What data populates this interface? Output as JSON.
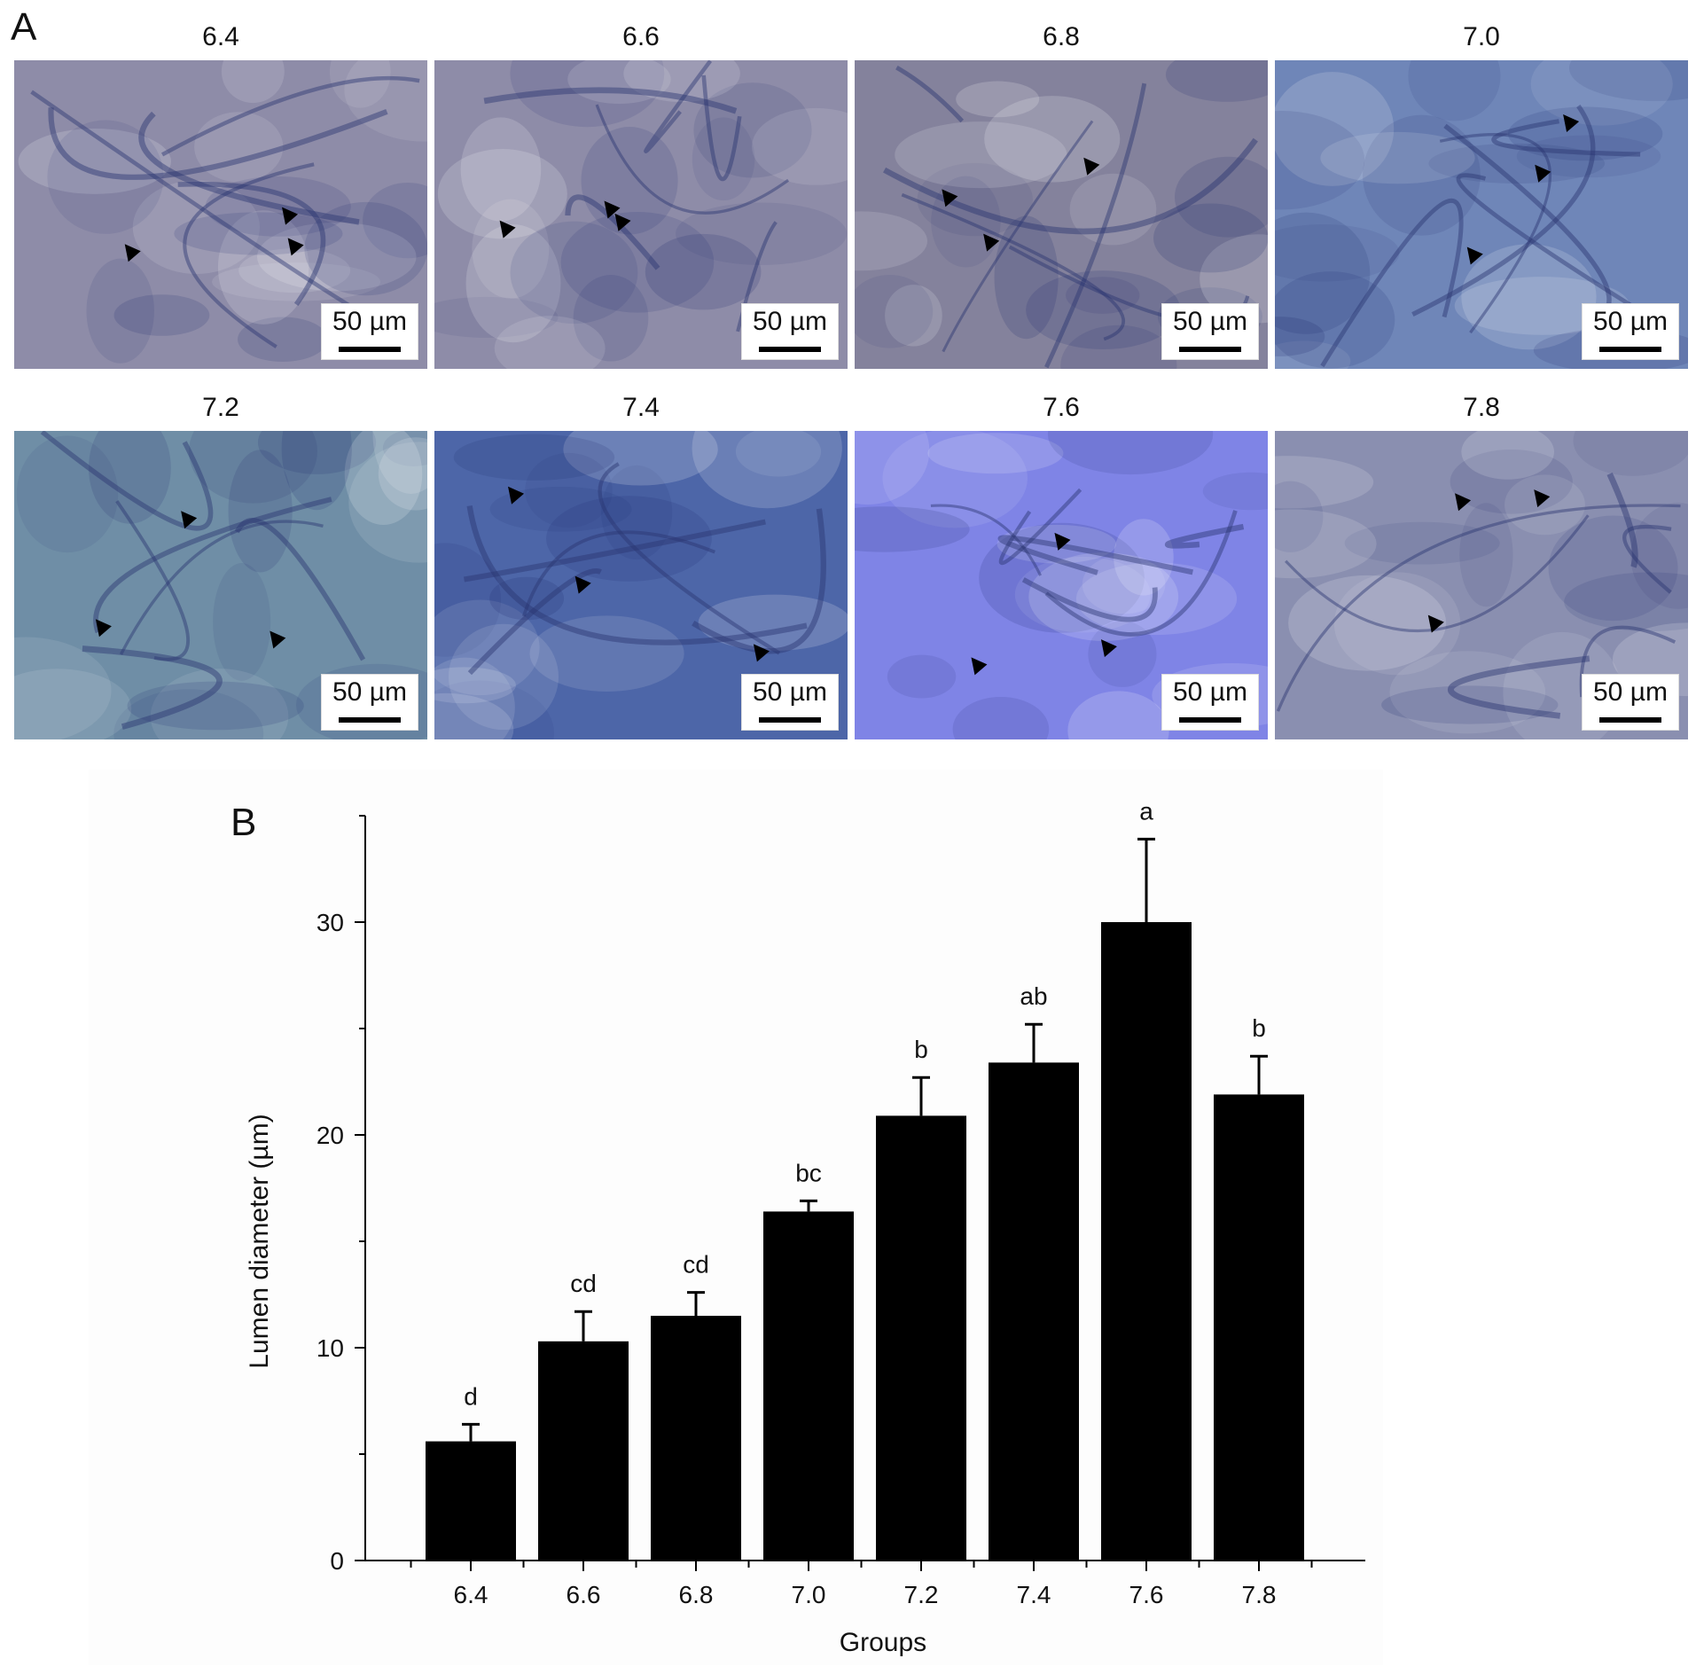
{
  "panel_a": {
    "letter": "A",
    "images": [
      {
        "label": "6.4",
        "scale": "50 µm",
        "tint": "#8e8ca8"
      },
      {
        "label": "6.6",
        "scale": "50 µm",
        "tint": "#8e8ca8"
      },
      {
        "label": "6.8",
        "scale": "50 µm",
        "tint": "#84829c"
      },
      {
        "label": "7.0",
        "scale": "50 µm",
        "tint": "#6f86b8"
      },
      {
        "label": "7.2",
        "scale": "50 µm",
        "tint": "#6f8ea6"
      },
      {
        "label": "7.4",
        "scale": "50 µm",
        "tint": "#4d66a8"
      },
      {
        "label": "7.6",
        "scale": "50 µm",
        "tint": "#7f84e6"
      },
      {
        "label": "7.8",
        "scale": "50 µm",
        "tint": "#8a8fb0"
      }
    ]
  },
  "chart_data": {
    "type": "bar",
    "panel_letter": "B",
    "categories": [
      "6.4",
      "6.6",
      "6.8",
      "7.0",
      "7.2",
      "7.4",
      "7.6",
      "7.8"
    ],
    "values": [
      5.6,
      10.3,
      11.5,
      16.4,
      20.9,
      23.4,
      30.0,
      21.9
    ],
    "errors": [
      0.8,
      1.4,
      1.1,
      0.5,
      1.8,
      1.8,
      3.9,
      1.8
    ],
    "significance": [
      "d",
      "cd",
      "cd",
      "bc",
      "b",
      "ab",
      "a",
      "b"
    ],
    "xlabel": "Groups",
    "ylabel": "Lumen diameter (µm)",
    "ylim": [
      0,
      35
    ],
    "yticks": [
      0,
      10,
      20,
      30
    ],
    "bar_color": "#000000",
    "grid": false
  }
}
